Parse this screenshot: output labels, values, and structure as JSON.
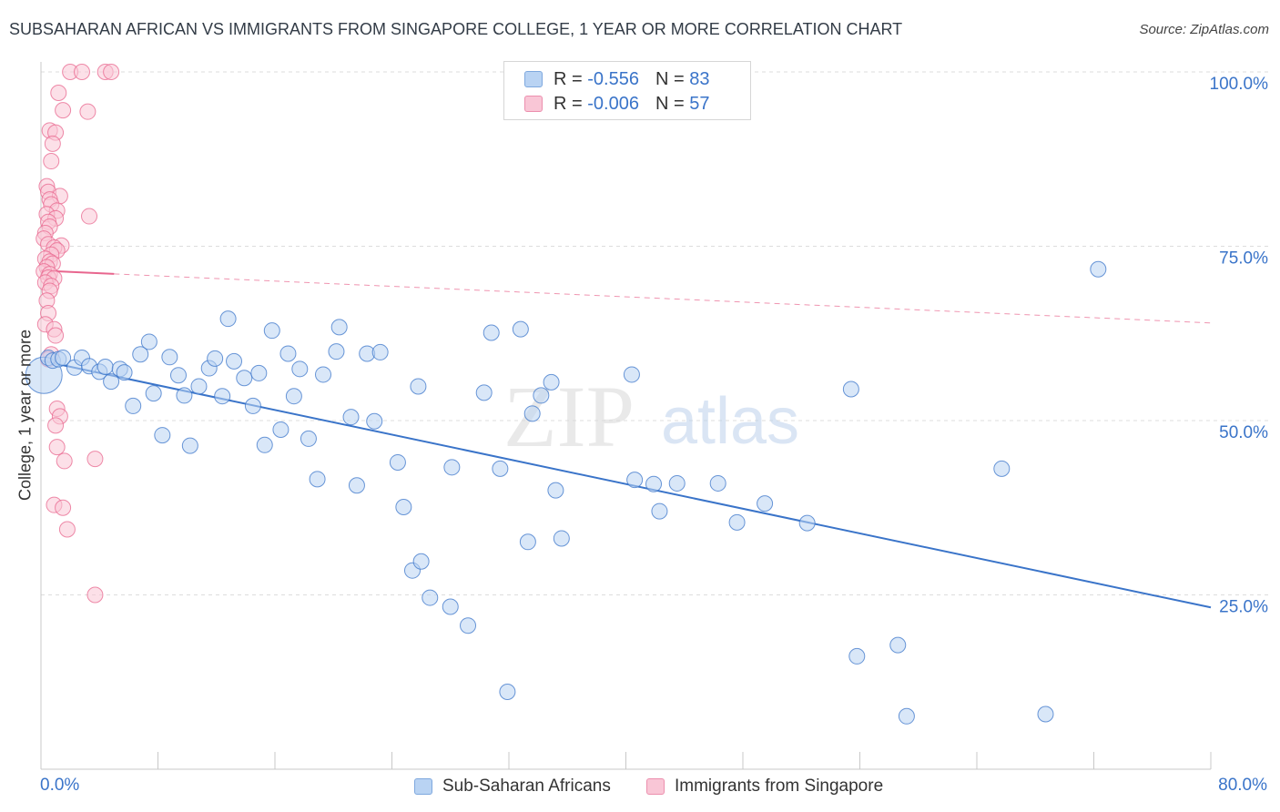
{
  "title": "SUBSAHARAN AFRICAN VS IMMIGRANTS FROM SINGAPORE COLLEGE, 1 YEAR OR MORE CORRELATION CHART",
  "source": "Source: ZipAtlas.com",
  "watermark": {
    "zip": "ZIP",
    "atlas": "atlas"
  },
  "legend": {
    "r_label": "R = ",
    "n_label": "N = ",
    "blue": {
      "r": "-0.556",
      "n": "83"
    },
    "pink": {
      "r": "-0.006",
      "n": "57"
    }
  },
  "bottom_legend": {
    "blue": "Sub-Saharan Africans",
    "pink": "Immigrants from Singapore"
  },
  "x_axis": {
    "min_label": "0.0%",
    "max_label": "80.0%"
  },
  "colors": {
    "blue": "#3a74c9",
    "blue_fill": "#b9d3f3",
    "pink": "#e8668e",
    "pink_fill": "#f9c6d6",
    "grid": "#dddddd"
  },
  "chart_data": {
    "type": "scatter",
    "xlabel": "",
    "ylabel": "College, 1 year or more",
    "xlim": [
      0,
      80
    ],
    "ylim": [
      0,
      100
    ],
    "y_ticks": [
      {
        "value": 25,
        "label": "25.0%"
      },
      {
        "value": 50,
        "label": "50.0%"
      },
      {
        "value": 75,
        "label": "75.0%"
      },
      {
        "value": 100,
        "label": "100.0%"
      }
    ],
    "series": [
      {
        "name": "Sub-Saharan Africans",
        "r": -0.556,
        "n": 83,
        "trend": {
          "x": [
            0,
            80
          ],
          "y": [
            58.6,
            23.2
          ],
          "dashed_after": null
        },
        "points": [
          [
            0.2,
            56.5
          ],
          [
            0.5,
            59.0
          ],
          [
            0.8,
            58.6
          ],
          [
            1.2,
            58.8
          ],
          [
            1.5,
            59.0
          ],
          [
            2.3,
            57.6
          ],
          [
            2.8,
            59.0
          ],
          [
            3.3,
            57.8
          ],
          [
            4.0,
            57.0
          ],
          [
            4.4,
            57.7
          ],
          [
            4.8,
            55.6
          ],
          [
            5.4,
            57.4
          ],
          [
            5.7,
            56.9
          ],
          [
            6.3,
            52.1
          ],
          [
            6.8,
            59.5
          ],
          [
            7.4,
            61.3
          ],
          [
            7.7,
            53.9
          ],
          [
            8.3,
            47.9
          ],
          [
            8.8,
            59.1
          ],
          [
            9.4,
            56.5
          ],
          [
            9.8,
            53.6
          ],
          [
            10.2,
            46.4
          ],
          [
            10.8,
            54.9
          ],
          [
            11.5,
            57.5
          ],
          [
            11.9,
            58.9
          ],
          [
            12.4,
            53.5
          ],
          [
            12.8,
            64.6
          ],
          [
            13.2,
            58.5
          ],
          [
            13.9,
            56.1
          ],
          [
            14.5,
            52.1
          ],
          [
            14.9,
            56.8
          ],
          [
            15.3,
            46.5
          ],
          [
            15.8,
            62.9
          ],
          [
            16.4,
            48.7
          ],
          [
            16.9,
            59.6
          ],
          [
            17.3,
            53.5
          ],
          [
            17.7,
            57.4
          ],
          [
            18.3,
            47.4
          ],
          [
            18.9,
            41.6
          ],
          [
            19.3,
            56.6
          ],
          [
            20.4,
            63.4
          ],
          [
            20.2,
            59.9
          ],
          [
            21.2,
            50.5
          ],
          [
            21.6,
            40.7
          ],
          [
            22.3,
            59.6
          ],
          [
            22.8,
            49.9
          ],
          [
            23.2,
            59.8
          ],
          [
            24.4,
            44.0
          ],
          [
            24.8,
            37.6
          ],
          [
            25.4,
            28.5
          ],
          [
            25.8,
            54.9
          ],
          [
            26.0,
            29.8
          ],
          [
            26.6,
            24.6
          ],
          [
            28.1,
            43.3
          ],
          [
            28.0,
            23.3
          ],
          [
            29.2,
            20.6
          ],
          [
            30.3,
            54.0
          ],
          [
            30.8,
            62.6
          ],
          [
            31.4,
            43.1
          ],
          [
            31.9,
            11.1
          ],
          [
            32.8,
            63.1
          ],
          [
            33.3,
            32.6
          ],
          [
            33.6,
            51.0
          ],
          [
            34.2,
            53.6
          ],
          [
            34.9,
            55.5
          ],
          [
            35.2,
            40.0
          ],
          [
            35.6,
            33.1
          ],
          [
            40.4,
            56.6
          ],
          [
            40.6,
            41.5
          ],
          [
            41.9,
            40.9
          ],
          [
            42.3,
            37.0
          ],
          [
            43.5,
            41.0
          ],
          [
            46.3,
            41.0
          ],
          [
            47.6,
            35.4
          ],
          [
            49.5,
            38.1
          ],
          [
            52.4,
            35.3
          ],
          [
            55.4,
            54.5
          ],
          [
            55.8,
            16.2
          ],
          [
            58.6,
            17.8
          ],
          [
            59.2,
            7.6
          ],
          [
            65.7,
            43.1
          ],
          [
            68.7,
            7.9
          ],
          [
            72.3,
            71.7
          ]
        ]
      },
      {
        "name": "Immigrants from Singapore",
        "r": -0.006,
        "n": 57,
        "trend": {
          "x": [
            0,
            80
          ],
          "y": [
            71.5,
            64.0
          ],
          "dashed_after": 5.0
        },
        "points": [
          [
            2.0,
            100.0
          ],
          [
            2.8,
            100.0
          ],
          [
            4.4,
            100.0
          ],
          [
            4.8,
            100.0
          ],
          [
            1.2,
            97.0
          ],
          [
            1.5,
            94.5
          ],
          [
            3.2,
            94.3
          ],
          [
            0.6,
            91.6
          ],
          [
            1.0,
            91.3
          ],
          [
            0.8,
            89.7
          ],
          [
            0.7,
            87.2
          ],
          [
            0.4,
            83.6
          ],
          [
            0.5,
            82.8
          ],
          [
            1.3,
            82.2
          ],
          [
            0.6,
            81.7
          ],
          [
            0.7,
            81.0
          ],
          [
            1.1,
            80.1
          ],
          [
            0.4,
            79.6
          ],
          [
            3.3,
            79.3
          ],
          [
            1.0,
            79.0
          ],
          [
            0.5,
            78.5
          ],
          [
            0.6,
            77.8
          ],
          [
            0.3,
            76.9
          ],
          [
            0.2,
            76.1
          ],
          [
            0.5,
            75.3
          ],
          [
            1.4,
            75.1
          ],
          [
            0.9,
            74.8
          ],
          [
            1.1,
            74.4
          ],
          [
            0.7,
            73.8
          ],
          [
            0.3,
            73.2
          ],
          [
            0.6,
            72.8
          ],
          [
            0.8,
            72.5
          ],
          [
            0.4,
            72.0
          ],
          [
            0.2,
            71.4
          ],
          [
            0.6,
            71.0
          ],
          [
            0.5,
            70.5
          ],
          [
            0.9,
            70.4
          ],
          [
            0.3,
            69.8
          ],
          [
            0.7,
            69.3
          ],
          [
            0.6,
            68.6
          ],
          [
            0.4,
            67.2
          ],
          [
            0.5,
            65.4
          ],
          [
            0.3,
            63.8
          ],
          [
            0.9,
            63.1
          ],
          [
            1.0,
            62.2
          ],
          [
            0.7,
            59.5
          ],
          [
            0.5,
            58.8
          ],
          [
            1.1,
            51.7
          ],
          [
            1.3,
            50.6
          ],
          [
            1.0,
            49.3
          ],
          [
            1.1,
            46.2
          ],
          [
            1.6,
            44.2
          ],
          [
            3.7,
            44.5
          ],
          [
            0.9,
            37.9
          ],
          [
            1.5,
            37.5
          ],
          [
            1.8,
            34.4
          ],
          [
            3.7,
            25.0
          ]
        ]
      }
    ]
  }
}
